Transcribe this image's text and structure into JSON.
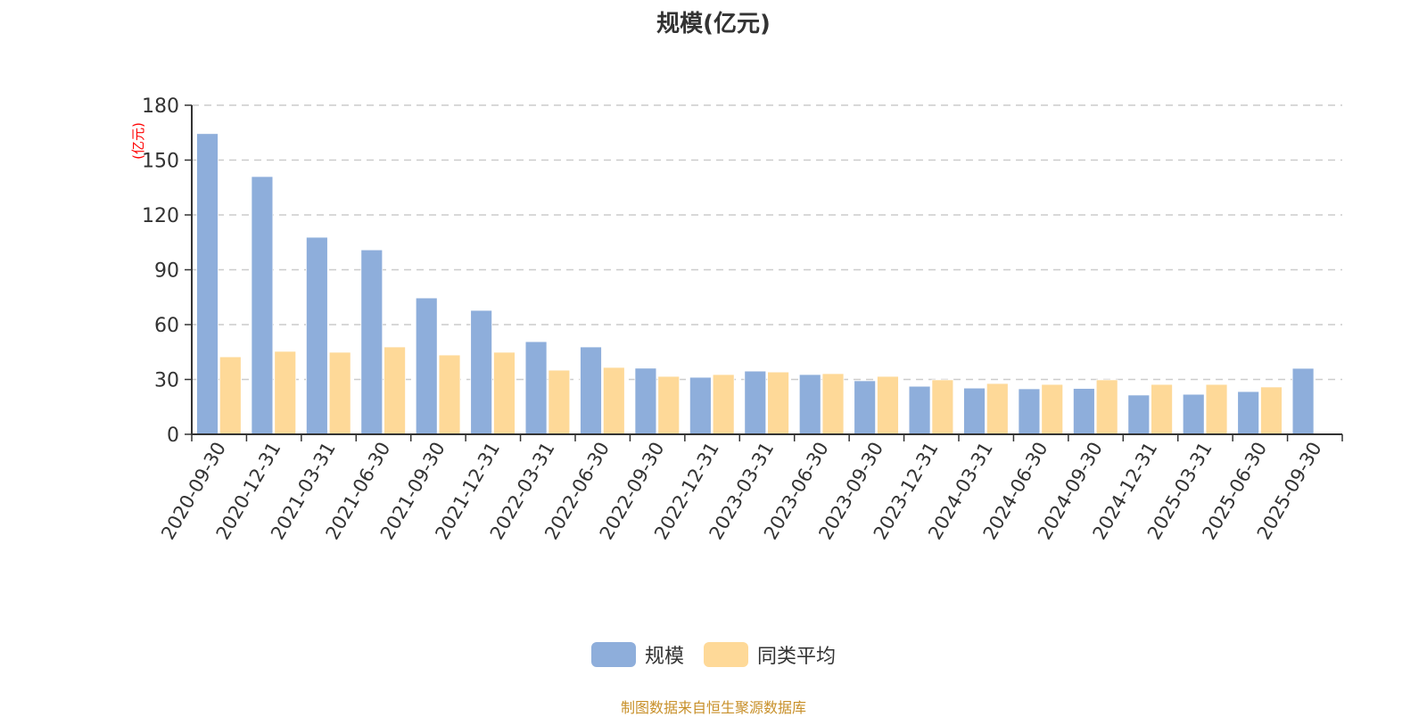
{
  "title": "规模(亿元)",
  "source": "制图数据来自恒生聚源数据库",
  "chart_data": {
    "type": "bar",
    "title": "规模(亿元)",
    "ylabel": "(亿元)",
    "xlabel": "",
    "ylim": [
      0,
      180
    ],
    "yticks": [
      0,
      30,
      60,
      90,
      120,
      150,
      180
    ],
    "grid": true,
    "legend_position": "bottom",
    "categories": [
      "2020-09-30",
      "2020-12-31",
      "2021-03-31",
      "2021-06-30",
      "2021-09-30",
      "2021-12-31",
      "2022-03-31",
      "2022-06-30",
      "2022-09-30",
      "2022-12-31",
      "2023-03-31",
      "2023-06-30",
      "2023-09-30",
      "2023-12-31",
      "2024-03-31",
      "2024-06-30",
      "2024-09-30",
      "2024-12-31",
      "2025-03-31",
      "2025-06-30",
      "2025-09-30"
    ],
    "series": [
      {
        "name": "规模",
        "color": "#8eaedb",
        "values": [
          164.5,
          141.0,
          107.8,
          100.9,
          74.6,
          67.8,
          50.7,
          47.8,
          36.2,
          31.2,
          34.6,
          32.7,
          29.3,
          26.3,
          25.3,
          24.9,
          25.1,
          21.5,
          21.9,
          23.4,
          36.1
        ]
      },
      {
        "name": "同类平均",
        "color": "#fed998",
        "values": [
          42.4,
          45.4,
          44.9,
          47.8,
          43.4,
          44.9,
          35.1,
          36.6,
          31.7,
          32.7,
          34.1,
          33.2,
          31.7,
          29.8,
          27.8,
          27.3,
          29.8,
          27.3,
          27.3,
          25.9,
          null
        ]
      }
    ]
  }
}
